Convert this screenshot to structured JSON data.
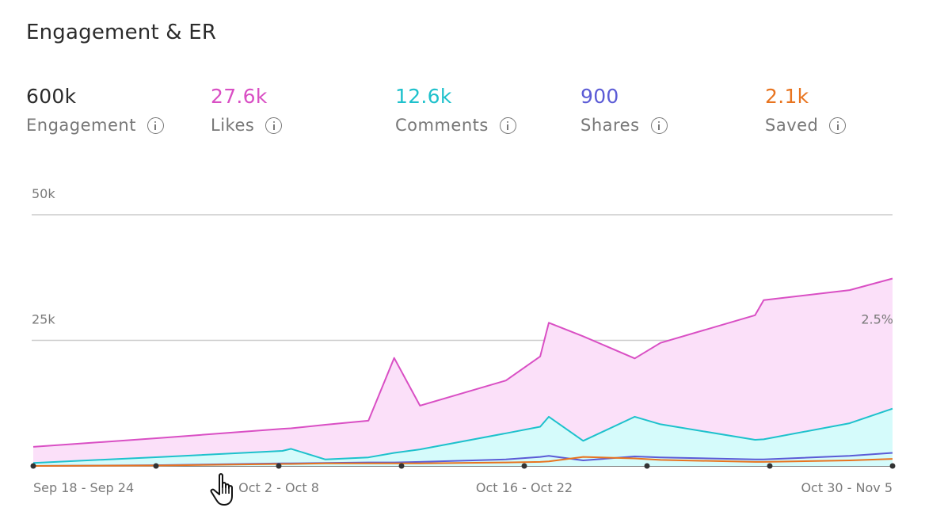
{
  "header": {
    "title": "Engagement & ER"
  },
  "metrics": [
    {
      "value": "600k",
      "label": "Engagement",
      "color": "#2b2b2b"
    },
    {
      "value": "27.6k",
      "label": "Likes",
      "color": "#d94fc4"
    },
    {
      "value": "12.6k",
      "label": "Comments",
      "color": "#1ec1cc"
    },
    {
      "value": "900",
      "label": "Shares",
      "color": "#5b5bd6"
    },
    {
      "value": "2.1k",
      "label": "Saved",
      "color": "#e8741f"
    }
  ],
  "chart_data": {
    "type": "area",
    "x_tick_labels": [
      "Sep 18 - Sep 24",
      "Oct 2 - Oct 8",
      "Oct 16 - Oct 22",
      "Oct 30 - Nov 5"
    ],
    "y_tick_labels": [
      "50k",
      "25k"
    ],
    "right_axis_label": "2.5%",
    "ylim": [
      0,
      50000
    ],
    "x": [
      0,
      0.15,
      0.29,
      0.3,
      0.34,
      0.39,
      0.42,
      0.45,
      0.55,
      0.59,
      0.6,
      0.64,
      0.7,
      0.73,
      0.84,
      0.85,
      0.95,
      1
    ],
    "series": [
      {
        "name": "Likes",
        "color": "#d94fc4",
        "fill": "#fbe0f9",
        "values": [
          3800,
          5600,
          7400,
          7500,
          8200,
          9000,
          21500,
          12000,
          17000,
          21800,
          28500,
          25800,
          21400,
          24500,
          30000,
          33000,
          35000,
          37300
        ]
      },
      {
        "name": "Comments",
        "color": "#1ec1cc",
        "fill": "#d5fbfb",
        "values": [
          600,
          1800,
          3000,
          3400,
          1300,
          1700,
          2600,
          3300,
          6500,
          7800,
          9800,
          5000,
          9800,
          8300,
          5200,
          5300,
          8500,
          11400
        ]
      },
      {
        "name": "Shares",
        "color": "#5b5bd6",
        "fill": "none",
        "values": [
          0,
          150,
          500,
          500,
          600,
          700,
          700,
          800,
          1300,
          1800,
          2000,
          1100,
          1900,
          1700,
          1300,
          1300,
          2000,
          2600
        ]
      },
      {
        "name": "Saved",
        "color": "#e8741f",
        "fill": "none",
        "values": [
          0,
          100,
          400,
          400,
          500,
          500,
          500,
          500,
          700,
          800,
          900,
          1800,
          1500,
          1200,
          800,
          800,
          1100,
          1400
        ]
      }
    ],
    "grid": true
  }
}
